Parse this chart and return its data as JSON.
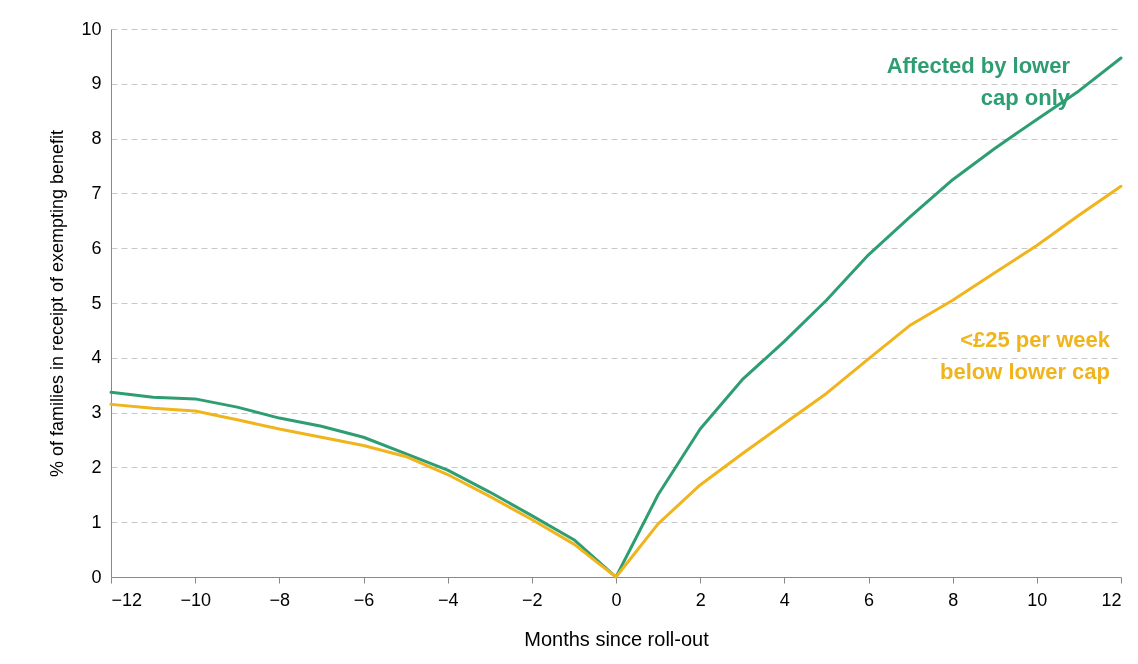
{
  "chart_data": {
    "type": "line",
    "xlabel": "Months since roll-out",
    "ylabel": "% of families in receipt of exempting benefit",
    "x": [
      -12,
      -11,
      -10,
      -9,
      -8,
      -7,
      -6,
      -5,
      -4,
      -3,
      -2,
      -1,
      0,
      1,
      2,
      3,
      4,
      5,
      6,
      7,
      8,
      9,
      10,
      11,
      12
    ],
    "series": [
      {
        "name": "Affected by lower cap only",
        "color": "#2e9e72",
        "values": [
          3.37,
          3.28,
          3.25,
          3.1,
          2.9,
          2.75,
          2.55,
          2.25,
          1.95,
          1.55,
          1.12,
          0.68,
          0,
          1.5,
          2.7,
          3.6,
          4.3,
          5.05,
          5.88,
          6.58,
          7.25,
          7.82,
          8.35,
          8.87,
          9.47
        ]
      },
      {
        "name": "<£25 per week below lower cap",
        "color": "#f0b41c",
        "values": [
          3.15,
          3.08,
          3.03,
          2.87,
          2.7,
          2.55,
          2.4,
          2.2,
          1.87,
          1.47,
          1.05,
          0.6,
          0,
          0.97,
          1.68,
          2.25,
          2.8,
          3.35,
          3.98,
          4.6,
          5.05,
          5.55,
          6.05,
          6.6,
          7.13
        ]
      }
    ],
    "xlim": [
      -12,
      12
    ],
    "xticks": [
      -12,
      -10,
      -8,
      -6,
      -4,
      -2,
      0,
      2,
      4,
      6,
      8,
      10,
      12
    ],
    "ylim": [
      0,
      10
    ],
    "yticks": [
      0,
      1,
      2,
      3,
      4,
      5,
      6,
      7,
      8,
      9,
      10
    ],
    "grid": "y",
    "legend": false,
    "marker": "none",
    "line_style": "solid"
  }
}
